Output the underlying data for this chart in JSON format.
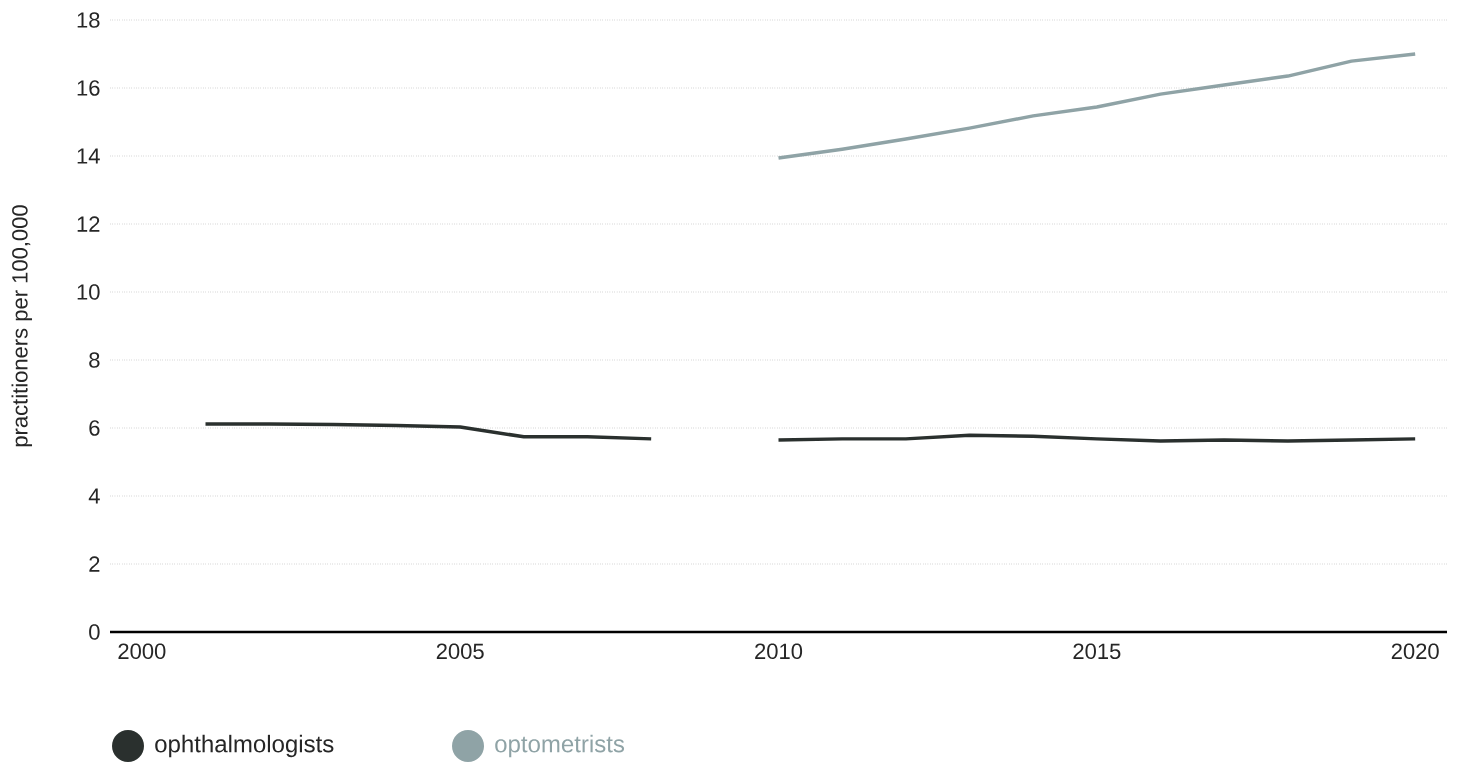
{
  "chart_data": {
    "type": "line",
    "ylabel": "practitioners per 100,000",
    "x": [
      2001,
      2002,
      2003,
      2004,
      2005,
      2006,
      2007,
      2008,
      2009,
      2010,
      2011,
      2012,
      2013,
      2014,
      2015,
      2016,
      2017,
      2018,
      2019,
      2020
    ],
    "series": [
      {
        "name": "ophthalmologists",
        "color": "#2a302e",
        "values": [
          6.12,
          6.12,
          6.1,
          6.07,
          6.03,
          5.74,
          5.74,
          5.68,
          null,
          5.65,
          5.68,
          5.68,
          5.79,
          5.76,
          5.68,
          5.62,
          5.65,
          5.62,
          5.65,
          5.68
        ]
      },
      {
        "name": "optometrists",
        "color": "#8fa3a6",
        "values": [
          null,
          null,
          null,
          null,
          null,
          null,
          null,
          null,
          null,
          13.94,
          14.2,
          14.5,
          14.82,
          15.18,
          15.44,
          15.82,
          16.09,
          16.35,
          16.79,
          17.0
        ]
      }
    ],
    "xlim": [
      1999.5,
      2020.5
    ],
    "ylim": [
      0,
      18
    ],
    "xticks": [
      2000,
      2005,
      2010,
      2015,
      2020
    ],
    "yticks": [
      0,
      2,
      4,
      6,
      8,
      10,
      12,
      14,
      16,
      18
    ],
    "grid": "y",
    "legend": "bottom left",
    "line_style": "solid"
  }
}
